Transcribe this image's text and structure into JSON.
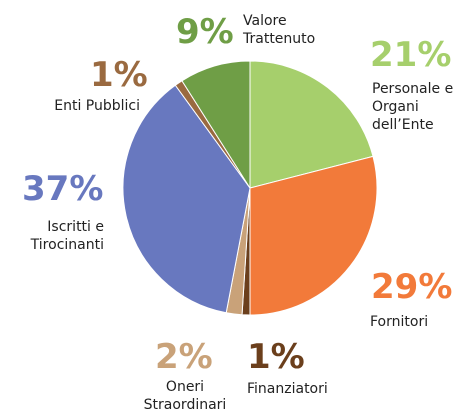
{
  "chart_data": {
    "type": "pie",
    "categories": [
      "Personale e\nOrgani\ndell’Ente",
      "Fornitori",
      "Finanziatori",
      "Oneri\nStraordinari",
      "Iscritti e\nTirocinanti",
      "Enti Pubblici",
      "Valore\nTrattenuto"
    ],
    "values": [
      21,
      29,
      1,
      2,
      37,
      1,
      9
    ],
    "value_labels": [
      "21%",
      "29%",
      "1%",
      "2%",
      "37%",
      "1%",
      "9%"
    ],
    "colors": [
      "#a6cf6c",
      "#f27a3a",
      "#6b3f1c",
      "#c9a279",
      "#6878bf",
      "#9a6a40",
      "#6f9e46"
    ]
  }
}
